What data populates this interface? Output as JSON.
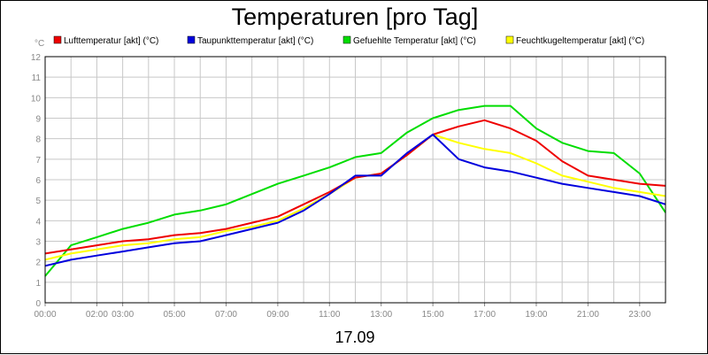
{
  "chart_data": {
    "type": "line",
    "title": "Temperaturen [pro Tag]",
    "date_label": "17.09",
    "y_unit": "°C",
    "ylim": [
      0,
      12
    ],
    "y_ticks": [
      "0",
      "1",
      "2",
      "3",
      "4",
      "5",
      "6",
      "7",
      "8",
      "9",
      "10",
      "11",
      "12"
    ],
    "xlim": [
      0,
      24
    ],
    "x_ticks": [
      {
        "label": "00:00",
        "hour": 0
      },
      {
        "label": "02:00",
        "hour": 2
      },
      {
        "label": "03:00",
        "hour": 3
      },
      {
        "label": "05:00",
        "hour": 5
      },
      {
        "label": "07:00",
        "hour": 7
      },
      {
        "label": "09:00",
        "hour": 9
      },
      {
        "label": "11:00",
        "hour": 11
      },
      {
        "label": "13:00",
        "hour": 13
      },
      {
        "label": "15:00",
        "hour": 15
      },
      {
        "label": "17:00",
        "hour": 17
      },
      {
        "label": "19:00",
        "hour": 19
      },
      {
        "label": "21:00",
        "hour": 21
      },
      {
        "label": "23:00",
        "hour": 23
      }
    ],
    "grid": true,
    "legend_position": "top",
    "x_hours": [
      0,
      1,
      2,
      3,
      4,
      5,
      6,
      7,
      8,
      9,
      10,
      11,
      12,
      13,
      14,
      15,
      16,
      17,
      18,
      19,
      20,
      21,
      22,
      23,
      24
    ],
    "series": [
      {
        "name": "Lufttemperatur [akt] (°C)",
        "color": "#ee0000",
        "values": [
          2.4,
          2.6,
          2.8,
          3.0,
          3.1,
          3.3,
          3.4,
          3.6,
          3.9,
          4.2,
          4.8,
          5.4,
          6.1,
          6.3,
          7.2,
          8.2,
          8.6,
          8.9,
          8.5,
          7.9,
          6.9,
          6.2,
          6.0,
          5.8,
          5.7
        ]
      },
      {
        "name": "Taupunkttemperatur [akt] (°C)",
        "color": "#0000dd",
        "values": [
          1.8,
          2.1,
          2.3,
          2.5,
          2.7,
          2.9,
          3.0,
          3.3,
          3.6,
          3.9,
          4.5,
          5.3,
          6.2,
          6.2,
          7.3,
          8.2,
          7.0,
          6.6,
          6.4,
          6.1,
          5.8,
          5.6,
          5.4,
          5.2,
          4.8
        ]
      },
      {
        "name": "Gefuehlte Temperatur [akt] (°C)",
        "color": "#00dd00",
        "values": [
          1.3,
          2.8,
          3.2,
          3.6,
          3.9,
          4.3,
          4.5,
          4.8,
          5.3,
          5.8,
          6.2,
          6.6,
          7.1,
          7.3,
          8.3,
          9.0,
          9.4,
          9.6,
          9.6,
          8.5,
          7.8,
          7.4,
          7.3,
          6.3,
          4.4
        ]
      },
      {
        "name": "Feuchtkugeltemperatur [akt] (°C)",
        "color": "#ffff00",
        "values": [
          2.1,
          2.4,
          2.6,
          2.8,
          2.9,
          3.1,
          3.2,
          3.5,
          3.7,
          4.0,
          4.6,
          5.3,
          6.1,
          6.3,
          7.2,
          8.2,
          7.8,
          7.5,
          7.3,
          6.8,
          6.2,
          5.9,
          5.6,
          5.4,
          5.2
        ]
      }
    ]
  }
}
